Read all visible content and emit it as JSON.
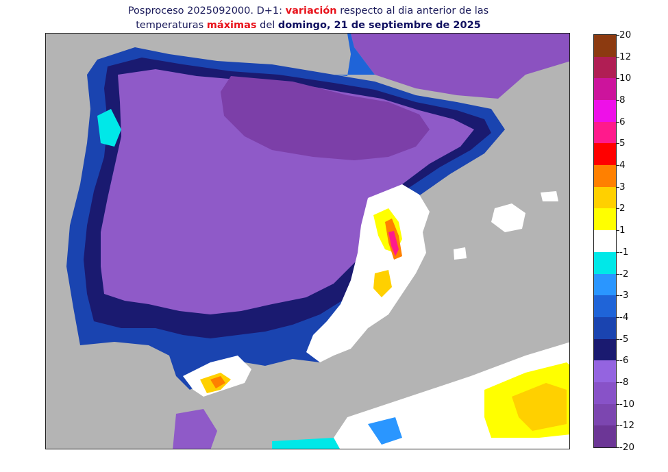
{
  "title": {
    "line1_prefix": "Posproceso 2025092000. D+1: ",
    "line1_highlight": "variación",
    "line1_suffix": " respecto al dia anterior de las",
    "line2_prefix": "temperaturas ",
    "line2_highlight": "máximas",
    "line2_middle": " del ",
    "line2_bold": "domingo, 21 de septiembre de 2025"
  },
  "colorbar": {
    "labels": [
      "20",
      "12",
      "10",
      "8",
      "6",
      "5",
      "4",
      "3",
      "2",
      "1",
      "-1",
      "-2",
      "-3",
      "-4",
      "-5",
      "-6",
      "-8",
      "-10",
      "-12",
      "-20"
    ],
    "colors": [
      "#8c3a10",
      "#b01e54",
      "#cc149c",
      "#ee10e8",
      "#ff1a8c",
      "#ff0000",
      "#ff8000",
      "#ffd000",
      "#ffff00",
      "#ffffff",
      "#00e8e8",
      "#2a96ff",
      "#1f64d8",
      "#1a44b0",
      "#1a1a70",
      "#9464e0",
      "#8852c8",
      "#7c46b0",
      "#6c3696"
    ]
  },
  "map": {
    "sea_color": "#b4b4b4",
    "land_base_color": "#8f5ac8",
    "land_dark_color": "#7c3fa8"
  }
}
